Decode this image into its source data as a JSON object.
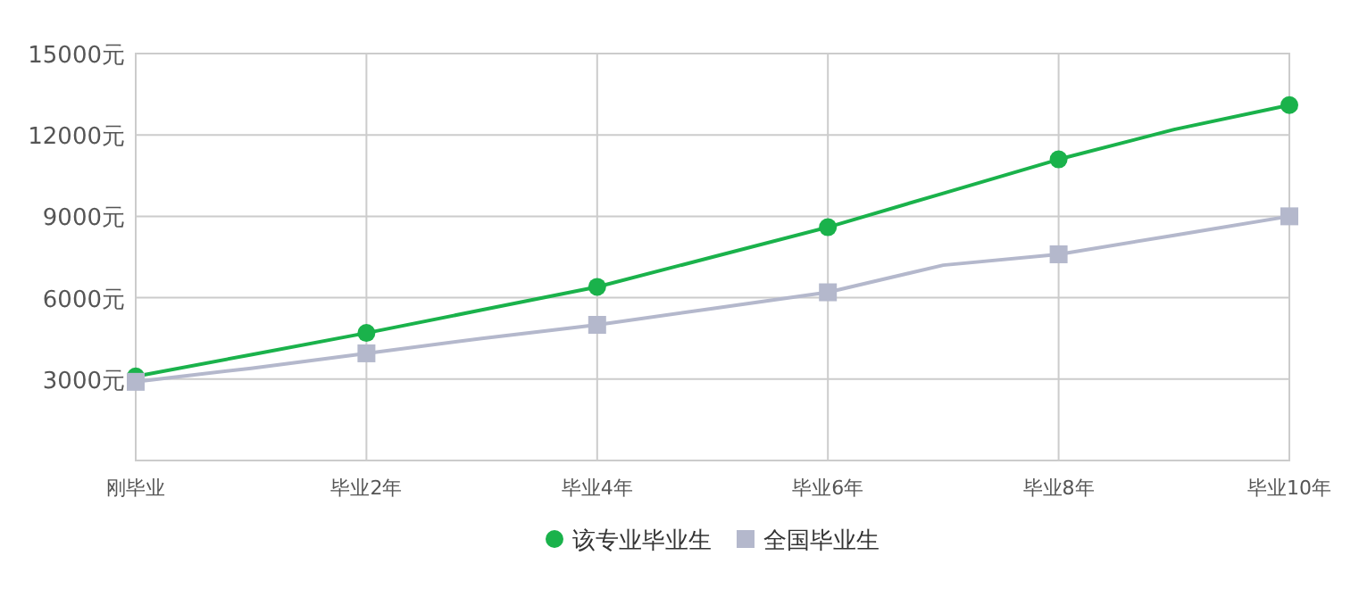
{
  "chart_data": {
    "type": "line",
    "categories": [
      "刚毕业",
      null,
      "毕业2年",
      null,
      "毕业4年",
      null,
      "毕业6年",
      null,
      "毕业8年",
      null,
      "毕业10年"
    ],
    "ylim": [
      0,
      15000
    ],
    "yticks": [
      {
        "value": 3000,
        "label": "3000元"
      },
      {
        "value": 6000,
        "label": "6000元"
      },
      {
        "value": 9000,
        "label": "9000元"
      },
      {
        "value": 12000,
        "label": "12000元"
      },
      {
        "value": 15000,
        "label": "15000元"
      }
    ],
    "grid": true,
    "legend": "bottom",
    "line_style": "solid",
    "series": [
      {
        "name": "该专业毕业生",
        "color": "#1ab24b",
        "marker": "circle",
        "values": [
          3100,
          3900,
          4700,
          5550,
          6400,
          7500,
          8600,
          9850,
          11100,
          12200,
          13100
        ]
      },
      {
        "name": "全国毕业生",
        "color": "#b4b8cc",
        "marker": "square",
        "values": [
          2900,
          3400,
          3950,
          4500,
          5000,
          5600,
          6200,
          7200,
          7600,
          8300,
          9000
        ]
      }
    ]
  }
}
